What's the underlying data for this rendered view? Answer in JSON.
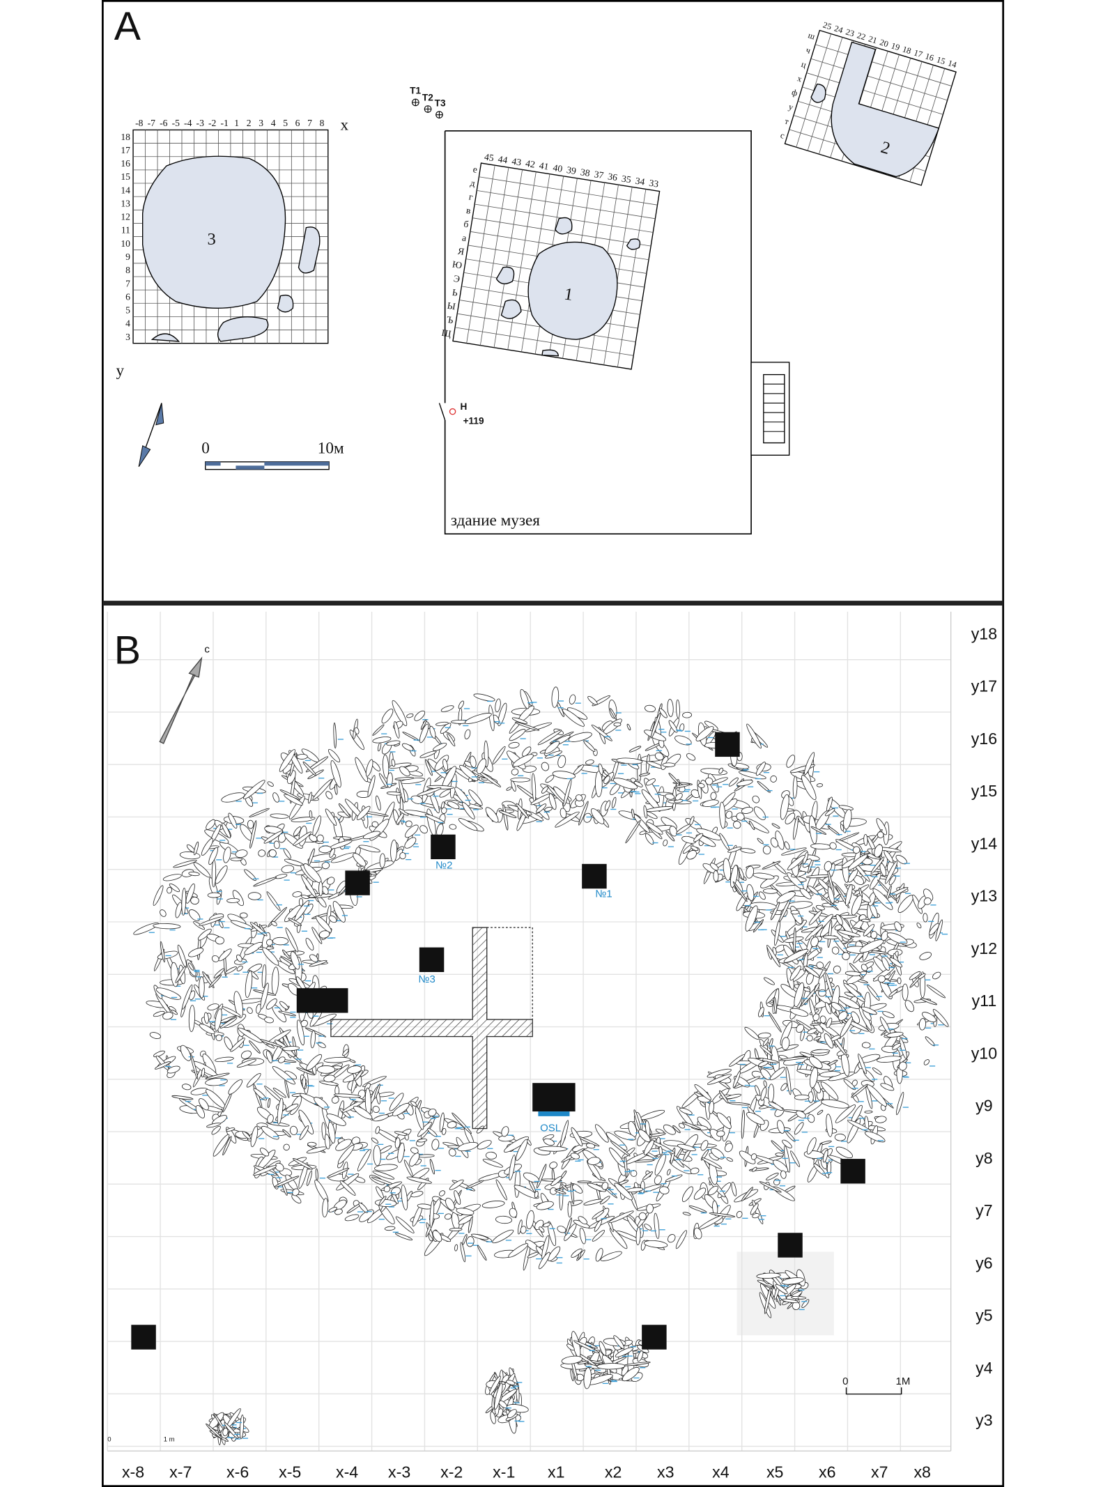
{
  "panel_a": {
    "label": "A",
    "site3": {
      "x_labels": [
        "-8",
        "-7",
        "-6",
        "-5",
        "-4",
        "-3",
        "-2",
        "-1",
        "1",
        "2",
        "3",
        "4",
        "5",
        "6",
        "7",
        "8"
      ],
      "y_labels": [
        "18",
        "17",
        "16",
        "15",
        "14",
        "13",
        "12",
        "11",
        "10",
        "9",
        "8",
        "7",
        "6",
        "5",
        "4",
        "3"
      ],
      "number": "3",
      "x_axis": "x",
      "y_axis": "y"
    },
    "site1": {
      "x_labels": [
        "45",
        "44",
        "43",
        "42",
        "41",
        "40",
        "39",
        "38",
        "37",
        "36",
        "35",
        "34",
        "33"
      ],
      "y_labels": [
        "е",
        "д",
        "г",
        "в",
        "б",
        "а",
        "Я",
        "Ю",
        "Э",
        "Ь",
        "Ы",
        "Ъ",
        "Щ"
      ],
      "number": "1"
    },
    "site2": {
      "x_labels": [
        "25",
        "24",
        "23",
        "22",
        "21",
        "20",
        "19",
        "18",
        "17",
        "16",
        "15",
        "14"
      ],
      "y_labels": [
        "ш",
        "ч",
        "ц",
        "х",
        "ф",
        "у",
        "т",
        "с"
      ],
      "number": "2"
    },
    "points": [
      "T1",
      "T2",
      "T3"
    ],
    "benchmark": {
      "name": "H",
      "elevation": "+119"
    },
    "building": "здание музея",
    "scale": {
      "start": "0",
      "end": "10м"
    }
  },
  "panel_b": {
    "label": "B",
    "north": "с",
    "x_labels": [
      "x-8",
      "x-7",
      "x-6",
      "x-5",
      "x-4",
      "x-3",
      "x-2",
      "x-1",
      "x1",
      "x2",
      "x3",
      "x4",
      "x5",
      "x6",
      "x7",
      "x8"
    ],
    "y_labels": [
      "y18",
      "y17",
      "y16",
      "y15",
      "y14",
      "y13",
      "y12",
      "y11",
      "y10",
      "y9",
      "y8",
      "y7",
      "y6",
      "y5",
      "y4",
      "y3"
    ],
    "samples": [
      "№1",
      "№2",
      "№3",
      "OSL"
    ],
    "scale": {
      "start": "0",
      "end": "1М"
    },
    "scale_small": {
      "start": "0",
      "end": "1 m"
    }
  }
}
